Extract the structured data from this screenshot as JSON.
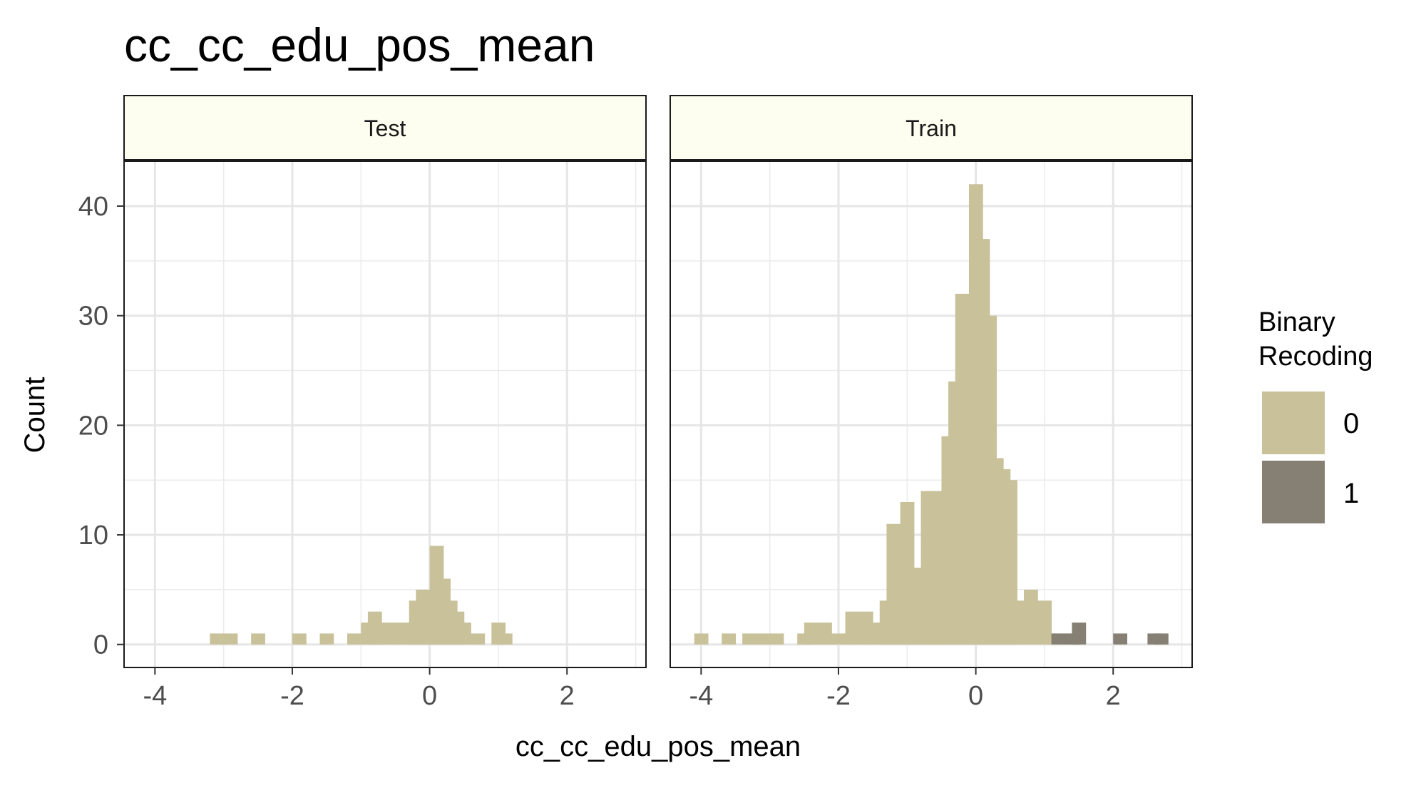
{
  "chart_data": {
    "type": "bar",
    "title": "cc_cc_edu_pos_mean",
    "xlabel": "cc_cc_edu_pos_mean",
    "ylabel": "Count",
    "xlim": [
      -4.45,
      3.15
    ],
    "ylim": [
      -2.1,
      44.1
    ],
    "x_ticks": [
      -4,
      -2,
      0,
      2
    ],
    "y_ticks": [
      0,
      10,
      20,
      30,
      40
    ],
    "grid": true,
    "legend": {
      "title_lines": [
        "Binary",
        "Recoding"
      ],
      "position": "right",
      "items": [
        {
          "label": "0",
          "color": "#c8c199"
        },
        {
          "label": "1",
          "color": "#868074"
        }
      ]
    },
    "colors": {
      "series_0": "#c8c199",
      "series_1": "#868074",
      "strip_fill": "#fdfdf0",
      "grid": "#e6e6e6",
      "panel_border": "#1a1a1a"
    },
    "bin_width": 0.2,
    "panels": [
      {
        "name": "Test",
        "series": [
          {
            "name": "0",
            "bins": [
              {
                "x": -3.1,
                "y": 1
              },
              {
                "x": -2.9,
                "y": 1
              },
              {
                "x": -2.5,
                "y": 1
              },
              {
                "x": -1.9,
                "y": 1
              },
              {
                "x": -1.5,
                "y": 1
              },
              {
                "x": -1.1,
                "y": 1
              },
              {
                "x": -0.9,
                "y": 2
              },
              {
                "x": -0.8,
                "y": 3
              },
              {
                "x": -0.7,
                "y": 2
              },
              {
                "x": -0.5,
                "y": 2
              },
              {
                "x": -0.3,
                "y": 2
              },
              {
                "x": -0.2,
                "y": 4
              },
              {
                "x": -0.1,
                "y": 5
              },
              {
                "x": 0.0,
                "y": 4
              },
              {
                "x": 0.1,
                "y": 9
              },
              {
                "x": 0.2,
                "y": 6
              },
              {
                "x": 0.3,
                "y": 4
              },
              {
                "x": 0.4,
                "y": 3
              },
              {
                "x": 0.5,
                "y": 2
              },
              {
                "x": 0.7,
                "y": 1
              },
              {
                "x": 1.0,
                "y": 2
              },
              {
                "x": 1.1,
                "y": 1
              }
            ]
          }
        ]
      },
      {
        "name": "Train",
        "series": [
          {
            "name": "0",
            "bins": [
              {
                "x": -4.0,
                "y": 1
              },
              {
                "x": -3.6,
                "y": 1
              },
              {
                "x": -3.3,
                "y": 1
              },
              {
                "x": -3.1,
                "y": 1
              },
              {
                "x": -2.9,
                "y": 1
              },
              {
                "x": -2.5,
                "y": 1
              },
              {
                "x": -2.4,
                "y": 2
              },
              {
                "x": -2.2,
                "y": 2
              },
              {
                "x": -2.0,
                "y": 1
              },
              {
                "x": -1.8,
                "y": 3
              },
              {
                "x": -1.6,
                "y": 3
              },
              {
                "x": -1.4,
                "y": 2
              },
              {
                "x": -1.3,
                "y": 4
              },
              {
                "x": -1.2,
                "y": 11
              },
              {
                "x": -1.1,
                "y": 7
              },
              {
                "x": -1.0,
                "y": 13
              },
              {
                "x": -0.9,
                "y": 7
              },
              {
                "x": -0.8,
                "y": 6
              },
              {
                "x": -0.7,
                "y": 14
              },
              {
                "x": -0.6,
                "y": 14
              },
              {
                "x": -0.5,
                "y": 14
              },
              {
                "x": -0.4,
                "y": 19
              },
              {
                "x": -0.3,
                "y": 24
              },
              {
                "x": -0.2,
                "y": 32
              },
              {
                "x": -0.1,
                "y": 31
              },
              {
                "x": 0.0,
                "y": 42
              },
              {
                "x": 0.1,
                "y": 37
              },
              {
                "x": 0.2,
                "y": 30
              },
              {
                "x": 0.3,
                "y": 17
              },
              {
                "x": 0.4,
                "y": 16
              },
              {
                "x": 0.5,
                "y": 15
              },
              {
                "x": 0.6,
                "y": 4
              },
              {
                "x": 0.8,
                "y": 5
              },
              {
                "x": 1.0,
                "y": 4
              },
              {
                "x": 1.2,
                "y": 1
              },
              {
                "x": 1.4,
                "y": 1
              }
            ]
          },
          {
            "name": "1",
            "bins": [
              {
                "x": 1.2,
                "y": 1
              },
              {
                "x": 1.4,
                "y": 1
              },
              {
                "x": 1.5,
                "y": 2
              },
              {
                "x": 2.1,
                "y": 1
              },
              {
                "x": 2.6,
                "y": 1
              },
              {
                "x": 2.7,
                "y": 1
              }
            ]
          }
        ]
      }
    ]
  }
}
